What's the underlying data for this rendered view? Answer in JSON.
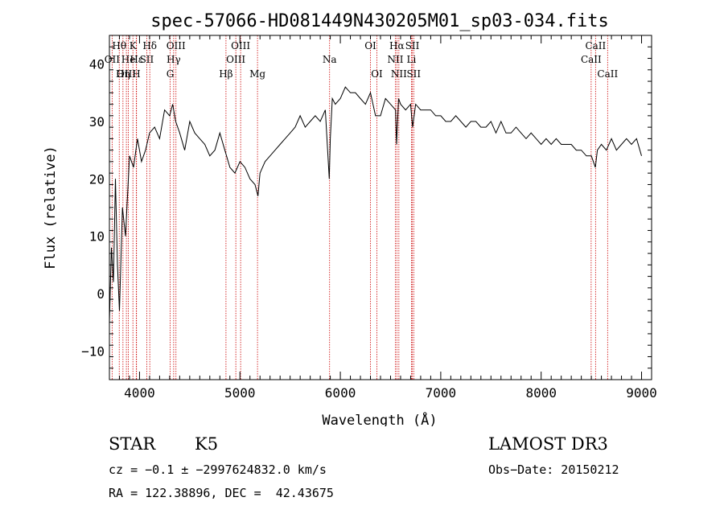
{
  "chart_data": {
    "type": "line",
    "title": "spec-57066-HD081449N430205M01_sp03-034.fits",
    "xlabel": "Wavelength (Å)",
    "ylabel": "Flux (relative)",
    "xlim": [
      3700,
      9100
    ],
    "ylim": [
      -15,
      45
    ],
    "xticks": [
      4000,
      5000,
      6000,
      7000,
      8000,
      9000
    ],
    "yticks": [
      -10,
      0,
      10,
      20,
      30,
      40
    ],
    "grid": false,
    "line_color": "#000000",
    "marker_color": "#cc0000",
    "spectrum": {
      "x": [
        3700,
        3720,
        3740,
        3760,
        3780,
        3800,
        3830,
        3860,
        3900,
        3940,
        3980,
        4020,
        4060,
        4100,
        4150,
        4200,
        4250,
        4300,
        4330,
        4360,
        4400,
        4450,
        4500,
        4550,
        4600,
        4650,
        4700,
        4750,
        4800,
        4850,
        4900,
        4950,
        5000,
        5050,
        5100,
        5150,
        5180,
        5200,
        5250,
        5300,
        5350,
        5400,
        5450,
        5500,
        5550,
        5600,
        5650,
        5700,
        5750,
        5800,
        5850,
        5890,
        5900,
        5920,
        5950,
        6000,
        6050,
        6100,
        6150,
        6200,
        6250,
        6300,
        6350,
        6400,
        6450,
        6500,
        6550,
        6560,
        6580,
        6600,
        6650,
        6700,
        6720,
        6750,
        6800,
        6850,
        6900,
        6950,
        7000,
        7050,
        7100,
        7150,
        7200,
        7250,
        7300,
        7350,
        7400,
        7450,
        7500,
        7550,
        7600,
        7650,
        7700,
        7750,
        7800,
        7850,
        7900,
        7950,
        8000,
        8050,
        8100,
        8150,
        8200,
        8250,
        8300,
        8350,
        8400,
        8450,
        8500,
        8540,
        8560,
        8600,
        8650,
        8700,
        8750,
        8800,
        8850,
        8900,
        8950,
        9000
      ],
      "y": [
        -5,
        8,
        2,
        20,
        5,
        -3,
        15,
        10,
        24,
        22,
        27,
        23,
        25,
        28,
        29,
        27,
        32,
        31,
        33,
        30,
        28,
        25,
        30,
        28,
        27,
        26,
        24,
        25,
        28,
        25,
        22,
        21,
        23,
        22,
        20,
        19,
        17,
        21,
        23,
        24,
        25,
        26,
        27,
        28,
        29,
        31,
        29,
        30,
        31,
        30,
        32,
        20,
        27,
        34,
        33,
        34,
        36,
        35,
        35,
        34,
        33,
        35,
        31,
        31,
        34,
        33,
        32,
        26,
        34,
        33,
        32,
        33,
        29,
        33,
        32,
        32,
        32,
        31,
        31,
        30,
        30,
        31,
        30,
        29,
        30,
        30,
        29,
        29,
        30,
        28,
        30,
        28,
        28,
        29,
        28,
        27,
        28,
        27,
        26,
        27,
        26,
        27,
        26,
        26,
        26,
        25,
        25,
        24,
        24,
        22,
        25,
        26,
        25,
        27,
        25,
        26,
        27,
        26,
        27,
        24
      ]
    },
    "lines": [
      {
        "label": "Hθ",
        "x": 3798,
        "row": 0
      },
      {
        "label": "OII",
        "x": 3727,
        "row": 1
      },
      {
        "label": "OIII",
        "x": 3869,
        "row": 2
      },
      {
        "label": "He",
        "x": 3889,
        "row": 1
      },
      {
        "label": "Hη",
        "x": 3835,
        "row": 2
      },
      {
        "label": "K",
        "x": 3934,
        "row": 0
      },
      {
        "label": "Hε",
        "x": 3970,
        "row": 1
      },
      {
        "label": "H",
        "x": 3968,
        "row": 2
      },
      {
        "label": "SII",
        "x": 4072,
        "row": 1
      },
      {
        "label": "Hδ",
        "x": 4102,
        "row": 0
      },
      {
        "label": "OIII",
        "x": 4363,
        "row": 0
      },
      {
        "label": "Hγ",
        "x": 4340,
        "row": 1
      },
      {
        "label": "G",
        "x": 4305,
        "row": 2
      },
      {
        "label": "Hβ",
        "x": 4861,
        "row": 2
      },
      {
        "label": "OIII",
        "x": 5007,
        "row": 0
      },
      {
        "label": "OIII",
        "x": 4959,
        "row": 1
      },
      {
        "label": "Mg",
        "x": 5175,
        "row": 2
      },
      {
        "label": "Na",
        "x": 5893,
        "row": 1
      },
      {
        "label": "OI",
        "x": 6300,
        "row": 0
      },
      {
        "label": "OI",
        "x": 6364,
        "row": 2
      },
      {
        "label": "Hα",
        "x": 6563,
        "row": 0
      },
      {
        "label": "NII",
        "x": 6548,
        "row": 1
      },
      {
        "label": "NII",
        "x": 6583,
        "row": 2
      },
      {
        "label": "SII",
        "x": 6717,
        "row": 0
      },
      {
        "label": "Li",
        "x": 6708,
        "row": 1
      },
      {
        "label": "SII",
        "x": 6731,
        "row": 2
      },
      {
        "label": "CaII",
        "x": 8542,
        "row": 0
      },
      {
        "label": "CaII",
        "x": 8498,
        "row": 1
      },
      {
        "label": "CaII",
        "x": 8662,
        "row": 2
      }
    ]
  },
  "info": {
    "class": "STAR",
    "subclass": "K5",
    "survey": "LAMOST DR3",
    "cz": "cz = −0.1 ± −2997624832.0 km/s",
    "obsdate": "Obs−Date: 20150212",
    "radec": "RA = 122.38896, DEC =  42.43675"
  }
}
